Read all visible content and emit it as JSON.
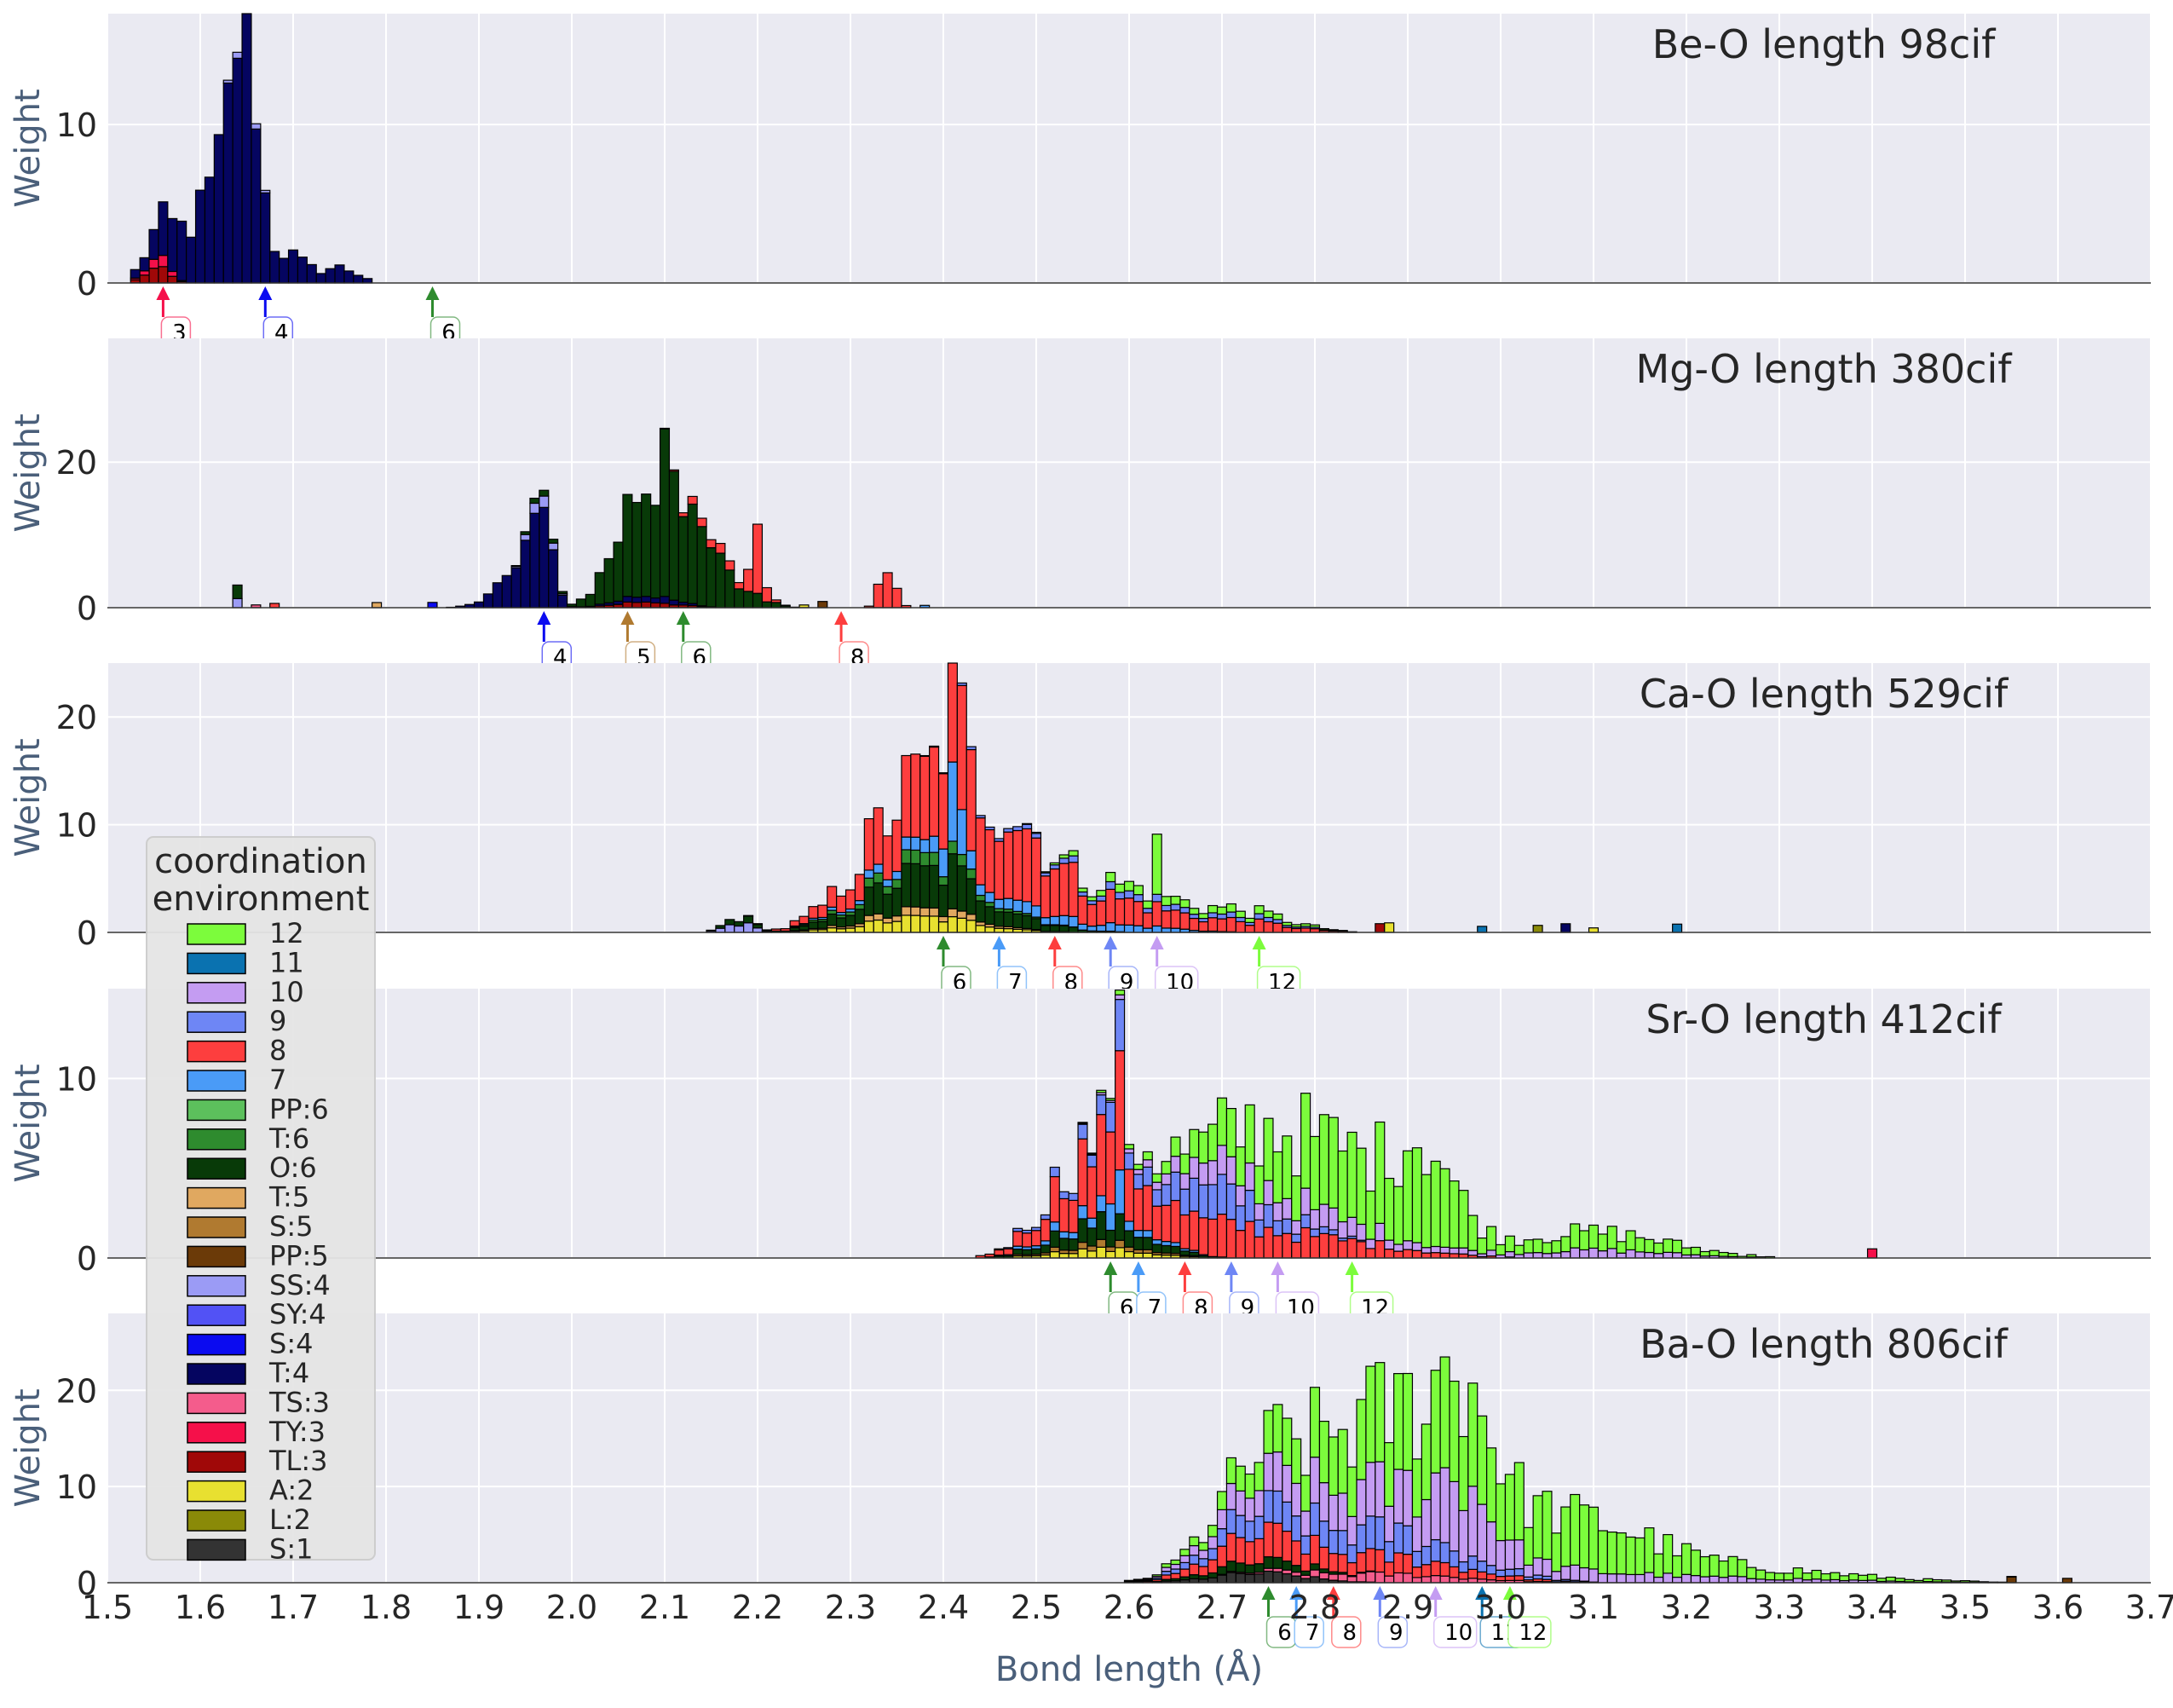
{
  "chart_data": {
    "type": "bar",
    "stacked": true,
    "xlabel": "Bond length (Å)",
    "ylabel": "Weight",
    "xlim": [
      1.5,
      3.7
    ],
    "x_ticks": [
      "1.5",
      "1.6",
      "1.7",
      "1.8",
      "1.9",
      "2.0",
      "2.1",
      "2.2",
      "2.3",
      "2.4",
      "2.5",
      "2.6",
      "2.7",
      "2.8",
      "2.9",
      "3.0",
      "3.1",
      "3.2",
      "3.3",
      "3.4",
      "3.5",
      "3.6",
      "3.7"
    ],
    "grid": true,
    "legend": {
      "title": "coordination\nenvironment",
      "placement": "left",
      "entries": [
        {
          "label": "12",
          "color": "#7cfc3c"
        },
        {
          "label": "11",
          "color": "#0a72b0"
        },
        {
          "label": "10",
          "color": "#c49cf2"
        },
        {
          "label": "9",
          "color": "#6e86f5"
        },
        {
          "label": "8",
          "color": "#fd3e3e"
        },
        {
          "label": "7",
          "color": "#4a9bf7"
        },
        {
          "label": "PP:6",
          "color": "#5cc05c"
        },
        {
          "label": "T:6",
          "color": "#2e8b2e"
        },
        {
          "label": "O:6",
          "color": "#083a08"
        },
        {
          "label": "T:5",
          "color": "#e0a860"
        },
        {
          "label": "S:5",
          "color": "#b07a30"
        },
        {
          "label": "PP:5",
          "color": "#6b3a08"
        },
        {
          "label": "SS:4",
          "color": "#9b9bf5"
        },
        {
          "label": "SY:4",
          "color": "#5252f5"
        },
        {
          "label": "S:4",
          "color": "#0b0bf0"
        },
        {
          "label": "T:4",
          "color": "#050560"
        },
        {
          "label": "TS:3",
          "color": "#f45c8c"
        },
        {
          "label": "TY:3",
          "color": "#f5104a"
        },
        {
          "label": "TL:3",
          "color": "#a00808"
        },
        {
          "label": "A:2",
          "color": "#e8e030"
        },
        {
          "label": "L:2",
          "color": "#8a8a08"
        },
        {
          "label": "S:1",
          "color": "#333333"
        }
      ]
    },
    "panels": [
      {
        "title": "Be-O length 98cif",
        "ylim": [
          0,
          17
        ],
        "yticks": [
          0,
          10
        ],
        "markers": [
          {
            "x": 1.56,
            "label": "3",
            "color": "#f5104a"
          },
          {
            "x": 1.67,
            "label": "4",
            "color": "#0b0bf0"
          },
          {
            "x": 1.85,
            "label": "6",
            "color": "#2e8b2e"
          }
        ],
        "peaks": [
          {
            "c": 1.545,
            "w": 0.01,
            "h": 1.0,
            "comp": {
              "TL:3": 0.6,
              "TY:3": 0.3,
              "T:4": 0.1
            }
          },
          {
            "c": 1.56,
            "w": 0.01,
            "h": 1.5,
            "comp": {
              "TL:3": 0.4,
              "TY:3": 0.3,
              "T:4": 0.3
            }
          },
          {
            "c": 1.59,
            "w": 0.03,
            "h": 3.5,
            "comp": {
              "T:4": 1.0
            }
          },
          {
            "c": 1.65,
            "w": 0.012,
            "h": 16,
            "comp": {
              "T:4": 0.96,
              "SS:4": 0.04
            }
          },
          {
            "c": 1.63,
            "w": 0.018,
            "h": 6,
            "comp": {
              "T:4": 1.0
            }
          },
          {
            "c": 1.69,
            "w": 0.02,
            "h": 2.0,
            "comp": {
              "T:4": 1.0
            }
          },
          {
            "c": 1.75,
            "w": 0.02,
            "h": 1.0,
            "comp": {
              "T:4": 1.0
            }
          },
          {
            "c": 1.88,
            "w": 0.004,
            "h": 0.6,
            "comp": {
              "TL:3": 1.0
            }
          },
          {
            "c": 1.9,
            "w": 0.004,
            "h": 0.9,
            "comp": {
              "O:6": 1.0
            }
          }
        ],
        "range": [
          1.53,
          1.79
        ]
      },
      {
        "title": "Mg-O length 380cif",
        "ylim": [
          0,
          37
        ],
        "yticks": [
          0,
          20
        ],
        "markers": [
          {
            "x": 1.97,
            "label": "4",
            "color": "#0b0bf0"
          },
          {
            "x": 2.06,
            "label": "5",
            "color": "#b07a30"
          },
          {
            "x": 2.12,
            "label": "6",
            "color": "#2e8b2e"
          },
          {
            "x": 2.29,
            "label": "8",
            "color": "#fd3e3e"
          }
        ],
        "peaks": [
          {
            "c": 1.965,
            "w": 0.012,
            "h": 16,
            "comp": {
              "T:4": 0.85,
              "SS:4": 0.1,
              "O:6": 0.05
            }
          },
          {
            "c": 1.93,
            "w": 0.02,
            "h": 4,
            "comp": {
              "T:4": 1.0
            }
          },
          {
            "c": 2.08,
            "w": 0.03,
            "h": 18,
            "comp": {
              "O:6": 0.9,
              "T:4": 0.05,
              "TL:3": 0.05
            }
          },
          {
            "c": 2.105,
            "w": 0.006,
            "h": 20,
            "comp": {
              "O:6": 0.97,
              "T:4": 0.03
            }
          },
          {
            "c": 2.14,
            "w": 0.02,
            "h": 8,
            "comp": {
              "O:6": 0.9,
              "8": 0.1
            }
          },
          {
            "c": 2.18,
            "w": 0.025,
            "h": 3,
            "comp": {
              "O:6": 0.7,
              "8": 0.3
            }
          },
          {
            "c": 2.2,
            "w": 0.006,
            "h": 10,
            "comp": {
              "8": 0.95,
              "O:6": 0.05
            }
          },
          {
            "c": 2.34,
            "w": 0.008,
            "h": 6,
            "comp": {
              "8": 1.0
            }
          },
          {
            "c": 1.64,
            "w": 0.003,
            "h": 4,
            "comp": {
              "O:6": 0.6,
              "SS:4": 0.4
            }
          }
        ],
        "range": [
          1.53,
          2.48
        ]
      },
      {
        "title": "Ca-O length 529cif",
        "ylim": [
          0,
          25
        ],
        "yticks": [
          0,
          10,
          20
        ],
        "markers": [
          {
            "x": 2.4,
            "label": "6",
            "color": "#2e8b2e"
          },
          {
            "x": 2.46,
            "label": "7",
            "color": "#4a9bf7"
          },
          {
            "x": 2.52,
            "label": "8",
            "color": "#fd3e3e"
          },
          {
            "x": 2.58,
            "label": "9",
            "color": "#6e86f5"
          },
          {
            "x": 2.63,
            "label": "10",
            "color": "#c49cf2"
          },
          {
            "x": 2.74,
            "label": "12",
            "color": "#7cfc3c"
          }
        ],
        "peaks": [
          {
            "c": 2.38,
            "w": 0.06,
            "h": 14,
            "comp": {
              "8": 0.45,
              "O:6": 0.25,
              "T:6": 0.08,
              "A:2": 0.1,
              "T:5": 0.05,
              "7": 0.07
            }
          },
          {
            "c": 2.41,
            "w": 0.008,
            "h": 10,
            "comp": {
              "7": 0.5,
              "8": 0.4,
              "O:6": 0.1
            }
          },
          {
            "c": 2.48,
            "w": 0.05,
            "h": 8,
            "comp": {
              "8": 0.75,
              "7": 0.12,
              "O:6": 0.08,
              "9": 0.05
            }
          },
          {
            "c": 2.6,
            "w": 0.05,
            "h": 4,
            "comp": {
              "8": 0.5,
              "9": 0.15,
              "12": 0.2,
              "7": 0.15
            }
          },
          {
            "c": 2.63,
            "w": 0.004,
            "h": 4,
            "comp": {
              "12": 1.0
            }
          },
          {
            "c": 2.72,
            "w": 0.05,
            "h": 2,
            "comp": {
              "8": 0.5,
              "12": 0.3,
              "9": 0.2
            }
          },
          {
            "c": 2.18,
            "w": 0.015,
            "h": 1.5,
            "comp": {
              "SS:4": 0.6,
              "O:6": 0.4
            }
          }
        ],
        "range": [
          2.1,
          3.2
        ]
      },
      {
        "title": "Sr-O length 412cif",
        "ylim": [
          0,
          15
        ],
        "yticks": [
          0,
          10
        ],
        "markers": [
          {
            "x": 2.58,
            "label": "6",
            "color": "#2e8b2e"
          },
          {
            "x": 2.61,
            "label": "7",
            "color": "#4a9bf7"
          },
          {
            "x": 2.66,
            "label": "8",
            "color": "#fd3e3e"
          },
          {
            "x": 2.71,
            "label": "9",
            "color": "#6e86f5"
          },
          {
            "x": 2.76,
            "label": "10",
            "color": "#c49cf2"
          },
          {
            "x": 2.84,
            "label": "12",
            "color": "#7cfc3c"
          }
        ],
        "peaks": [
          {
            "c": 2.57,
            "w": 0.05,
            "h": 7,
            "comp": {
              "8": 0.5,
              "O:6": 0.18,
              "9": 0.1,
              "A:2": 0.07,
              "S:5": 0.05,
              "7": 0.1
            }
          },
          {
            "c": 2.585,
            "w": 0.005,
            "h": 7,
            "comp": {
              "7": 0.3,
              "8": 0.4,
              "9": 0.3
            }
          },
          {
            "c": 2.7,
            "w": 0.06,
            "h": 5,
            "comp": {
              "9": 0.35,
              "8": 0.3,
              "10": 0.2,
              "12": 0.15
            }
          },
          {
            "c": 2.82,
            "w": 0.08,
            "h": 6,
            "comp": {
              "12": 0.7,
              "10": 0.15,
              "8": 0.15
            }
          },
          {
            "c": 2.92,
            "w": 0.03,
            "h": 4,
            "comp": {
              "12": 1.0
            }
          },
          {
            "c": 3.1,
            "w": 0.08,
            "h": 1.5,
            "comp": {
              "12": 0.7,
              "10": 0.3
            }
          }
        ],
        "range": [
          2.3,
          3.45
        ]
      },
      {
        "title": "Ba-O length 806cif",
        "ylim": [
          0,
          28
        ],
        "yticks": [
          0,
          10,
          20
        ],
        "markers": [
          {
            "x": 2.75,
            "label": "6",
            "color": "#2e8b2e"
          },
          {
            "x": 2.78,
            "label": "7",
            "color": "#4a9bf7"
          },
          {
            "x": 2.82,
            "label": "8",
            "color": "#fd3e3e"
          },
          {
            "x": 2.87,
            "label": "9",
            "color": "#6e86f5"
          },
          {
            "x": 2.93,
            "label": "10",
            "color": "#c49cf2"
          },
          {
            "x": 2.98,
            "label": "11",
            "color": "#0a72b0"
          },
          {
            "x": 3.01,
            "label": "12",
            "color": "#7cfc3c"
          }
        ],
        "peaks": [
          {
            "c": 2.74,
            "w": 0.05,
            "h": 10,
            "comp": {
              "8": 0.25,
              "9": 0.2,
              "10": 0.2,
              "12": 0.15,
              "O:6": 0.1,
              "S:1": 0.1
            }
          },
          {
            "c": 2.88,
            "w": 0.08,
            "h": 18,
            "comp": {
              "12": 0.45,
              "10": 0.25,
              "9": 0.15,
              "8": 0.1,
              "TS:3": 0.05
            }
          },
          {
            "c": 2.96,
            "w": 0.03,
            "h": 10,
            "comp": {
              "12": 0.5,
              "10": 0.5
            }
          },
          {
            "c": 3.08,
            "w": 0.08,
            "h": 6,
            "comp": {
              "12": 0.85,
              "10": 0.15
            }
          },
          {
            "c": 3.25,
            "w": 0.12,
            "h": 1.5,
            "comp": {
              "12": 0.7,
              "10": 0.3
            }
          }
        ],
        "range": [
          2.5,
          3.65
        ]
      }
    ]
  }
}
